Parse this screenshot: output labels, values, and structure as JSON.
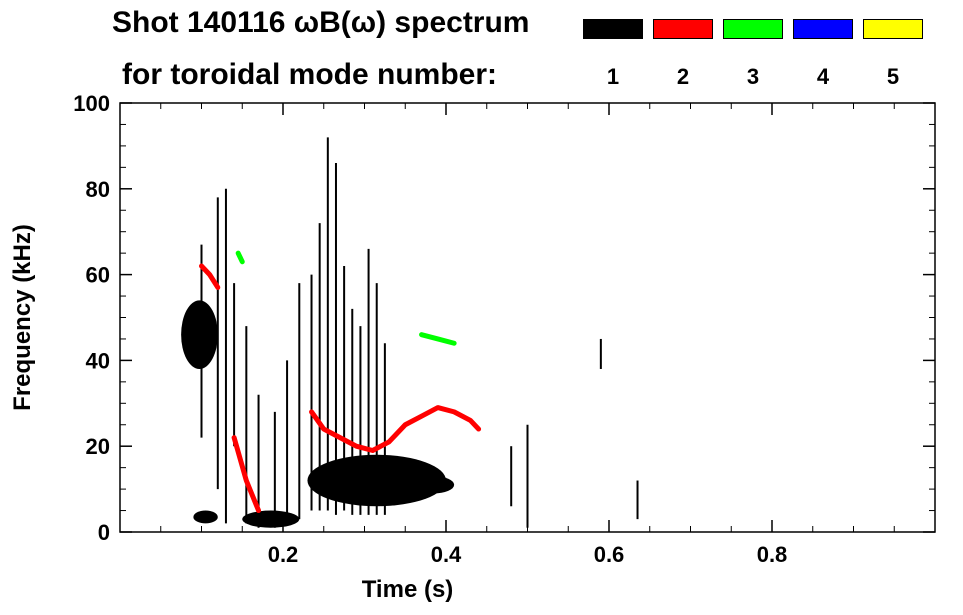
{
  "title_line1": "Shot 140116 ωB(ω) spectrum",
  "title_line2": "for toroidal mode number:",
  "legend": [
    {
      "mode": "1",
      "color": "#000000"
    },
    {
      "mode": "2",
      "color": "#ff0000"
    },
    {
      "mode": "3",
      "color": "#00ff00"
    },
    {
      "mode": "4",
      "color": "#0000ff"
    },
    {
      "mode": "5",
      "color": "#ffff00"
    }
  ],
  "chart_data": {
    "type": "heatmap",
    "title": "Shot 140116 ωB(ω) spectrum for toroidal mode number",
    "xlabel": "Time (s)",
    "ylabel": "Frequency (kHz)",
    "xlim": [
      0.0,
      1.0
    ],
    "ylim": [
      0,
      100
    ],
    "xticks": [
      0.2,
      0.4,
      0.6,
      0.8
    ],
    "xtick_labels": [
      "0.2",
      "0.4",
      "0.6",
      "0.8"
    ],
    "yticks": [
      0,
      20,
      40,
      60,
      80,
      100
    ],
    "ytick_labels": [
      "0",
      "20",
      "40",
      "60",
      "80",
      "100"
    ],
    "blobs": [
      {
        "mode": 1,
        "t": [
          0.075,
          0.12
        ],
        "f": [
          38,
          54
        ]
      },
      {
        "mode": 1,
        "t": [
          0.23,
          0.4
        ],
        "f": [
          6,
          18
        ]
      },
      {
        "mode": 1,
        "t": [
          0.36,
          0.41
        ],
        "f": [
          9,
          13
        ]
      },
      {
        "mode": 1,
        "t": [
          0.15,
          0.22
        ],
        "f": [
          1,
          5
        ]
      },
      {
        "mode": 1,
        "t": [
          0.09,
          0.12
        ],
        "f": [
          2,
          5
        ]
      }
    ],
    "streaks": [
      {
        "mode": 1,
        "t": 0.1,
        "f": [
          22,
          67
        ]
      },
      {
        "mode": 1,
        "t": 0.12,
        "f": [
          10,
          78
        ]
      },
      {
        "mode": 1,
        "t": 0.13,
        "f": [
          2,
          80
        ]
      },
      {
        "mode": 1,
        "t": 0.14,
        "f": [
          20,
          58
        ]
      },
      {
        "mode": 1,
        "t": 0.155,
        "f": [
          2,
          48
        ]
      },
      {
        "mode": 1,
        "t": 0.17,
        "f": [
          1,
          32
        ]
      },
      {
        "mode": 1,
        "t": 0.19,
        "f": [
          1,
          28
        ]
      },
      {
        "mode": 1,
        "t": 0.205,
        "f": [
          2,
          40
        ]
      },
      {
        "mode": 1,
        "t": 0.22,
        "f": [
          3,
          58
        ]
      },
      {
        "mode": 1,
        "t": 0.235,
        "f": [
          5,
          60
        ]
      },
      {
        "mode": 1,
        "t": 0.245,
        "f": [
          5,
          72
        ]
      },
      {
        "mode": 1,
        "t": 0.255,
        "f": [
          5,
          92
        ]
      },
      {
        "mode": 1,
        "t": 0.265,
        "f": [
          4,
          86
        ]
      },
      {
        "mode": 1,
        "t": 0.275,
        "f": [
          5,
          62
        ]
      },
      {
        "mode": 1,
        "t": 0.285,
        "f": [
          4,
          52
        ]
      },
      {
        "mode": 1,
        "t": 0.295,
        "f": [
          4,
          48
        ]
      },
      {
        "mode": 1,
        "t": 0.305,
        "f": [
          4,
          66
        ]
      },
      {
        "mode": 1,
        "t": 0.315,
        "f": [
          4,
          58
        ]
      },
      {
        "mode": 1,
        "t": 0.325,
        "f": [
          4,
          44
        ]
      },
      {
        "mode": 1,
        "t": 0.48,
        "f": [
          6,
          20
        ]
      },
      {
        "mode": 1,
        "t": 0.5,
        "f": [
          1,
          25
        ]
      },
      {
        "mode": 1,
        "t": 0.59,
        "f": [
          38,
          45
        ]
      },
      {
        "mode": 1,
        "t": 0.635,
        "f": [
          3,
          12
        ]
      }
    ],
    "series": [
      {
        "name": "mode 2",
        "mode": 2,
        "t": [
          0.235,
          0.25,
          0.27,
          0.29,
          0.31,
          0.33,
          0.35,
          0.37,
          0.39,
          0.41,
          0.43,
          0.44
        ],
        "f": [
          28,
          24,
          22,
          20,
          19,
          21,
          25,
          27,
          29,
          28,
          26,
          24
        ]
      },
      {
        "name": "mode 2",
        "mode": 2,
        "t": [
          0.1,
          0.11,
          0.12
        ],
        "f": [
          62,
          60,
          57
        ]
      },
      {
        "name": "mode 2",
        "mode": 2,
        "t": [
          0.14,
          0.155,
          0.17
        ],
        "f": [
          22,
          12,
          5
        ]
      },
      {
        "name": "mode 3",
        "mode": 3,
        "t": [
          0.37,
          0.39,
          0.41
        ],
        "f": [
          46,
          45,
          44
        ]
      },
      {
        "name": "mode 3",
        "mode": 3,
        "t": [
          0.145,
          0.15
        ],
        "f": [
          65,
          63
        ]
      }
    ]
  }
}
